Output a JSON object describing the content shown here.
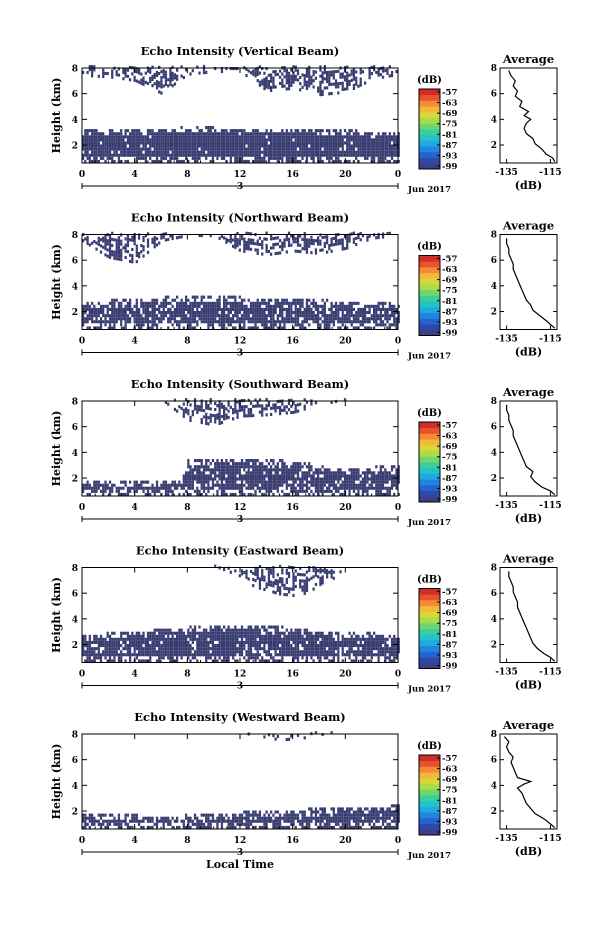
{
  "figure": {
    "time_axis_label": "Local Time",
    "date_label": "Jun 2017",
    "day_label": "3",
    "colorbar_unit": "(dB)",
    "colorbar_ticks": [
      "-57",
      "-63",
      "-69",
      "-75",
      "-81",
      "-87",
      "-93",
      "-99"
    ],
    "colorbar_colors": [
      "#3b3f86",
      "#3048a8",
      "#2563cf",
      "#1f86e0",
      "#1fa9e0",
      "#24c3c8",
      "#38cf9c",
      "#6fd66c",
      "#a8dc48",
      "#d8d63a",
      "#f3b839",
      "#f48a35",
      "#e8532f",
      "#d12c26"
    ],
    "fill_color": "#393c70"
  },
  "chart_data": [
    {
      "type": "heatmap",
      "title": "Echo Intensity (Vertical Beam)",
      "ylabel": "Height (km)",
      "xlabel": "",
      "x_ticks": [
        "0",
        "4",
        "8",
        "12",
        "16",
        "20",
        "0"
      ],
      "y_ticks": [
        "2",
        "4",
        "6",
        "8"
      ],
      "xlim": [
        0,
        24
      ],
      "ylim": [
        0.6,
        8
      ],
      "layers": [
        {
          "t": [
            0,
            3,
            6,
            9,
            12,
            15,
            18,
            21,
            24
          ],
          "bottom": [
            0.6,
            0.6,
            0.6,
            0.6,
            0.6,
            0.6,
            0.6,
            0.6,
            0.6
          ],
          "top": [
            3.1,
            3.0,
            3.2,
            3.3,
            3.1,
            3.2,
            3.1,
            3.0,
            2.9
          ],
          "density": 0.96
        },
        {
          "t": [
            0,
            2,
            4,
            6,
            8,
            10,
            12,
            14,
            16,
            18,
            20,
            22,
            24
          ],
          "bottom": [
            7.3,
            7.2,
            6.9,
            5.9,
            7.4,
            7.6,
            7.6,
            6.1,
            6.3,
            5.8,
            6.0,
            7.0,
            7.4
          ],
          "top": [
            8,
            8,
            8,
            8,
            8,
            8,
            8,
            8,
            8,
            8,
            8,
            8,
            8
          ],
          "density": 0.62
        }
      ],
      "average": {
        "title": "Average",
        "x_ticks": [
          "-135",
          "-115"
        ],
        "y_ticks": [
          "2",
          "4",
          "6",
          "8"
        ],
        "xlabel": "(dB)",
        "xlim": [
          -138,
          -112
        ],
        "ylim": [
          0.6,
          8
        ],
        "h": [
          0.7,
          1.0,
          1.3,
          1.7,
          2.1,
          2.5,
          2.9,
          3.3,
          3.7,
          4.0,
          4.3,
          4.6,
          5.0,
          5.4,
          5.8,
          6.2,
          6.6,
          7.0,
          7.4,
          7.8
        ],
        "db": [
          -113,
          -114,
          -117,
          -119,
          -122,
          -123,
          -126,
          -127,
          -126,
          -124,
          -127,
          -125,
          -129,
          -128,
          -131,
          -130,
          -132,
          -131,
          -133,
          -134
        ]
      }
    },
    {
      "type": "heatmap",
      "title": "Echo Intensity (Northward Beam)",
      "ylabel": "Height (km)",
      "xlabel": "",
      "x_ticks": [
        "0",
        "4",
        "8",
        "12",
        "16",
        "20",
        "0"
      ],
      "y_ticks": [
        "2",
        "4",
        "6",
        "8"
      ],
      "xlim": [
        0,
        24
      ],
      "ylim": [
        0.6,
        8
      ],
      "layers": [
        {
          "t": [
            0,
            3,
            6,
            9,
            12,
            15,
            18,
            21,
            24
          ],
          "bottom": [
            0.6,
            0.6,
            0.6,
            0.6,
            0.6,
            0.6,
            0.6,
            0.6,
            0.6
          ],
          "top": [
            2.7,
            2.8,
            3.0,
            3.1,
            3.0,
            3.0,
            2.8,
            2.6,
            2.5
          ],
          "density": 0.85
        },
        {
          "t": [
            0,
            2,
            4,
            6,
            8,
            10,
            12,
            14,
            16,
            18,
            20,
            22,
            24
          ],
          "bottom": [
            7.4,
            6.1,
            5.7,
            7.4,
            7.8,
            7.8,
            6.6,
            6.3,
            6.6,
            6.4,
            6.8,
            7.6,
            7.8
          ],
          "top": [
            8,
            8,
            8,
            8,
            8,
            8,
            8,
            8,
            8,
            8,
            8,
            8,
            8
          ],
          "density": 0.6
        }
      ],
      "average": {
        "title": "Average",
        "x_ticks": [
          "-135",
          "-115"
        ],
        "y_ticks": [
          "2",
          "4",
          "6",
          "8"
        ],
        "xlabel": "(dB)",
        "xlim": [
          -138,
          -112
        ],
        "ylim": [
          0.6,
          8
        ],
        "h": [
          0.7,
          1.0,
          1.3,
          1.7,
          2.1,
          2.5,
          2.9,
          3.3,
          3.7,
          4.1,
          4.5,
          4.9,
          5.3,
          5.7,
          6.1,
          6.5,
          6.9,
          7.3,
          7.7
        ],
        "db": [
          -113,
          -115,
          -117,
          -120,
          -123,
          -124,
          -126,
          -127,
          -128,
          -129,
          -130,
          -131,
          -132,
          -132,
          -133,
          -134,
          -134,
          -135,
          -135
        ]
      }
    },
    {
      "type": "heatmap",
      "title": "Echo Intensity (Southward Beam)",
      "ylabel": "Height (km)",
      "xlabel": "",
      "x_ticks": [
        "0",
        "4",
        "8",
        "12",
        "16",
        "20",
        "0"
      ],
      "y_ticks": [
        "2",
        "4",
        "6",
        "8"
      ],
      "xlim": [
        0,
        24
      ],
      "ylim": [
        0.6,
        8
      ],
      "layers": [
        {
          "t": [
            0,
            3,
            6,
            7.5,
            8,
            12,
            16,
            19,
            24
          ],
          "bottom": [
            0.6,
            0.6,
            0.6,
            0.6,
            0.6,
            0.6,
            0.6,
            0.6,
            0.6
          ],
          "top": [
            1.8,
            1.6,
            1.7,
            1.7,
            3.3,
            3.4,
            3.2,
            2.7,
            2.8
          ],
          "density": 0.85
        },
        {
          "t": [
            0,
            6,
            8,
            10,
            12,
            14,
            16,
            18,
            20,
            24
          ],
          "bottom": [
            8,
            8,
            6.4,
            6.0,
            6.7,
            6.8,
            7.0,
            7.6,
            8,
            8
          ],
          "top": [
            8,
            8,
            8,
            8,
            8,
            8,
            8,
            8,
            8,
            8
          ],
          "density": 0.6
        }
      ],
      "average": {
        "title": "Average",
        "x_ticks": [
          "-135",
          "-115"
        ],
        "y_ticks": [
          "2",
          "4",
          "6",
          "8"
        ],
        "xlabel": "(dB)",
        "xlim": [
          -138,
          -112
        ],
        "ylim": [
          0.6,
          8
        ],
        "h": [
          0.7,
          1.0,
          1.3,
          1.7,
          2.1,
          2.5,
          2.9,
          3.3,
          3.7,
          4.1,
          4.5,
          4.9,
          5.3,
          5.7,
          6.1,
          6.5,
          6.9,
          7.3,
          7.7
        ],
        "db": [
          -113,
          -115,
          -119,
          -122,
          -124,
          -123,
          -126,
          -127,
          -128,
          -129,
          -130,
          -131,
          -132,
          -132,
          -133,
          -134,
          -134,
          -135,
          -135
        ]
      }
    },
    {
      "type": "heatmap",
      "title": "Echo Intensity (Eastward Beam)",
      "ylabel": "Height (km)",
      "xlabel": "",
      "x_ticks": [
        "0",
        "4",
        "8",
        "12",
        "16",
        "20",
        "0"
      ],
      "y_ticks": [
        "2",
        "4",
        "6",
        "8"
      ],
      "xlim": [
        0,
        24
      ],
      "ylim": [
        0.6,
        8
      ],
      "layers": [
        {
          "t": [
            0,
            3,
            6,
            9,
            12,
            15,
            18,
            21,
            24
          ],
          "bottom": [
            0.6,
            0.6,
            0.6,
            0.6,
            0.6,
            0.6,
            0.6,
            0.6,
            0.6
          ],
          "top": [
            2.7,
            2.8,
            3.2,
            3.3,
            3.4,
            3.3,
            2.9,
            2.8,
            2.7
          ],
          "density": 0.88
        },
        {
          "t": [
            0,
            6,
            10,
            12,
            13,
            15,
            17,
            19,
            20,
            24
          ],
          "bottom": [
            8,
            8,
            8,
            7.2,
            6.4,
            5.8,
            5.6,
            7.0,
            8,
            8
          ],
          "top": [
            8,
            8,
            8,
            8,
            8,
            8,
            8,
            8,
            8,
            8
          ],
          "density": 0.55
        }
      ],
      "average": {
        "title": "Average",
        "x_ticks": [
          "-135",
          "-115"
        ],
        "y_ticks": [
          "2",
          "4",
          "6",
          "8"
        ],
        "xlabel": "(dB)",
        "xlim": [
          -138,
          -112
        ],
        "ylim": [
          0.6,
          8
        ],
        "h": [
          0.7,
          1.0,
          1.3,
          1.7,
          2.1,
          2.5,
          2.9,
          3.3,
          3.7,
          4.1,
          4.5,
          4.9,
          5.3,
          5.7,
          6.1,
          6.5,
          6.9,
          7.3,
          7.7
        ],
        "db": [
          -113,
          -115,
          -118,
          -121,
          -123,
          -124,
          -125,
          -126,
          -127,
          -128,
          -129,
          -130,
          -130,
          -131,
          -132,
          -132,
          -133,
          -134,
          -134
        ]
      }
    },
    {
      "type": "heatmap",
      "title": "Echo Intensity (Westward Beam)",
      "ylabel": "Height (km)",
      "xlabel": "Local Time",
      "x_ticks": [
        "0",
        "4",
        "8",
        "12",
        "16",
        "20",
        "0"
      ],
      "y_ticks": [
        "2",
        "4",
        "6",
        "8"
      ],
      "xlim": [
        0,
        24
      ],
      "ylim": [
        0.6,
        8
      ],
      "layers": [
        {
          "t": [
            0,
            3,
            6,
            9,
            12,
            15,
            18,
            21,
            24
          ],
          "bottom": [
            0.6,
            0.6,
            0.6,
            0.6,
            0.6,
            0.6,
            0.6,
            0.6,
            0.6
          ],
          "top": [
            1.7,
            1.6,
            1.5,
            1.6,
            1.8,
            1.9,
            2.1,
            2.2,
            2.3
          ],
          "density": 0.9
        },
        {
          "t": [
            0,
            12,
            13,
            15,
            17,
            19,
            24
          ],
          "bottom": [
            8,
            8,
            7.8,
            7.4,
            7.6,
            8,
            8
          ],
          "top": [
            8,
            8,
            8,
            8,
            8,
            8,
            8
          ],
          "density": 0.4
        }
      ],
      "average": {
        "title": "Average",
        "x_ticks": [
          "-135",
          "-115"
        ],
        "y_ticks": [
          "2",
          "4",
          "6",
          "8"
        ],
        "xlabel": "(dB)",
        "xlim": [
          -138,
          -112
        ],
        "ylim": [
          0.6,
          8
        ],
        "h": [
          0.7,
          1.0,
          1.4,
          1.8,
          2.2,
          2.6,
          3.0,
          3.4,
          3.8,
          4.1,
          4.3,
          4.6,
          5.0,
          5.4,
          5.8,
          6.2,
          6.6,
          7.0,
          7.4,
          7.8
        ],
        "db": [
          -113,
          -115,
          -118,
          -122,
          -124,
          -126,
          -127,
          -128,
          -130,
          -127,
          -124,
          -130,
          -131,
          -132,
          -133,
          -132,
          -134,
          -135,
          -134,
          -136
        ]
      }
    }
  ]
}
